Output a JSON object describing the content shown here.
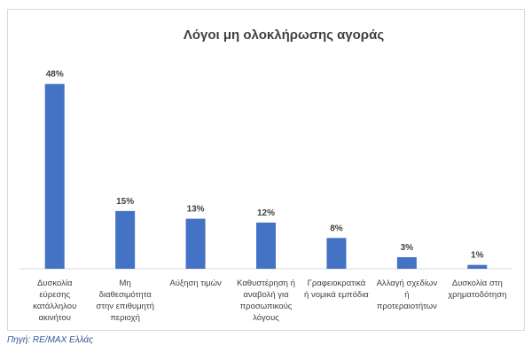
{
  "chart_data": {
    "type": "bar",
    "title": "Λόγοι μη ολοκλήρωσης αγοράς",
    "categories": [
      [
        "Δυσκολία",
        "εύρεσης",
        "κατάλληλου",
        "ακινήτου"
      ],
      [
        "Μη",
        "διαθεσιμότητα",
        "στην επιθυμητή",
        "περιοχή"
      ],
      [
        "Αύξηση τιμών"
      ],
      [
        "Καθυστέρηση ή",
        "αναβολή για",
        "προσωπικούς",
        "λόγους"
      ],
      [
        "Γραφειοκρατικά",
        "ή νομικά εμπόδια"
      ],
      [
        "Αλλαγή σχεδίων",
        "ή",
        "προτεραιοτήτων"
      ],
      [
        "Δυσκολία στη",
        "χρηματοδότηση"
      ]
    ],
    "values": [
      48,
      15,
      13,
      12,
      8,
      3,
      1
    ],
    "data_labels": [
      "48%",
      "15%",
      "13%",
      "12%",
      "8%",
      "3%",
      "1%"
    ],
    "xlabel": "",
    "ylabel": "",
    "ylim": [
      0,
      50
    ],
    "grid": false,
    "legend": "none",
    "bar_color": "#4472c4"
  },
  "source": "Πηγή: RE/MAX Ελλάς"
}
